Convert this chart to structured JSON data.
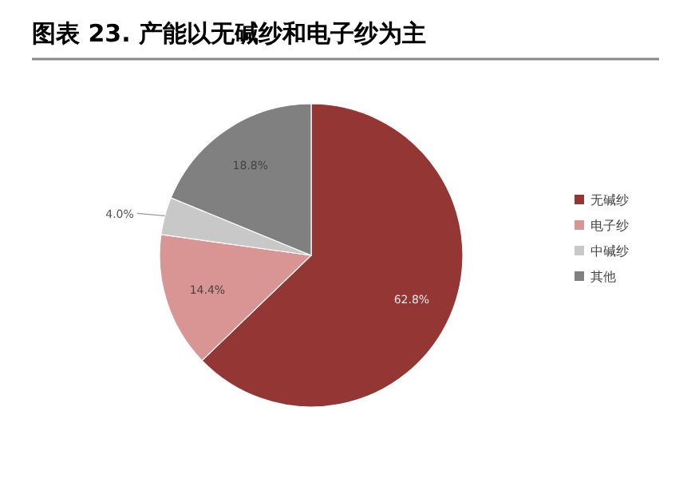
{
  "chart_data": {
    "type": "pie",
    "title": "图表 23. 产能以无碱纱和电子纱为主",
    "categories": [
      "无碱纱",
      "电子纱",
      "中碱纱",
      "其他"
    ],
    "values": [
      62.8,
      14.4,
      4.0,
      18.8
    ],
    "value_labels": [
      "62.8%",
      "14.4%",
      "4.0%",
      "18.8%"
    ],
    "colors": [
      "#943634",
      "#d99594",
      "#c8c8c8",
      "#808080"
    ],
    "legend": "right"
  }
}
